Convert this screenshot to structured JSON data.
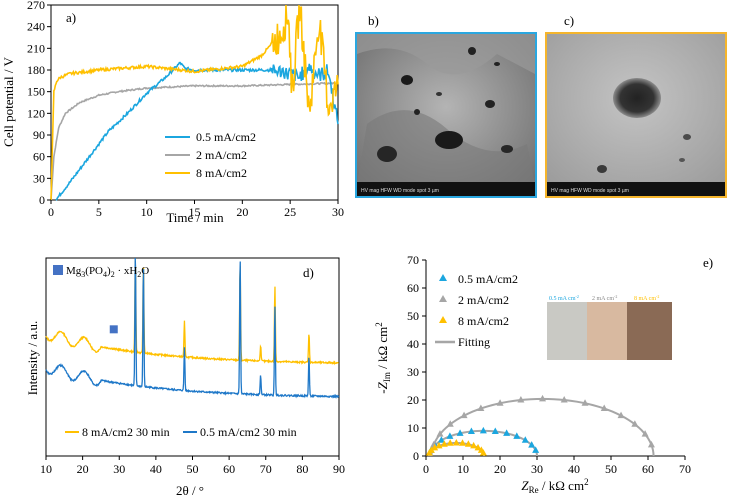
{
  "colors": {
    "blue": "#1ba6df",
    "gray": "#a6a6a6",
    "yellow": "#ffc000",
    "line_blue_xrd": "#1f78c8",
    "square": "#4472c4",
    "frame_b": "#2aa7e0",
    "frame_c": "#f5b52c",
    "fitting": "#a6a6a6"
  },
  "chart_data": [
    {
      "id": "a",
      "type": "line",
      "panel_label": "a)",
      "xlabel": "Time / min",
      "ylabel": "Cell potential / V",
      "xlim": [
        0,
        30
      ],
      "ylim": [
        0,
        270
      ],
      "xticks": [
        "0",
        "5",
        "10",
        "15",
        "20",
        "25",
        "30"
      ],
      "yticks": [
        "0",
        "30",
        "60",
        "90",
        "120",
        "150",
        "180",
        "210",
        "240",
        "270"
      ],
      "legend": [
        "0.5 mA/cm2",
        "2 mA/cm2",
        "8 mA/cm2"
      ],
      "series": [
        {
          "name": "0.5 mA/cm2",
          "color": "#1ba6df",
          "x": [
            0.5,
            2,
            4,
            6,
            8,
            10,
            12,
            13.5,
            14,
            15,
            20,
            23,
            25,
            26,
            27,
            28,
            29,
            30
          ],
          "y": [
            0,
            25,
            60,
            95,
            120,
            148,
            170,
            190,
            182,
            180,
            180,
            180,
            175,
            170,
            185,
            172,
            178,
            105
          ]
        },
        {
          "name": "2 mA/cm2",
          "color": "#a6a6a6",
          "x": [
            0,
            0.3,
            0.8,
            1.5,
            3,
            5,
            7,
            10,
            15,
            20,
            25,
            30
          ],
          "y": [
            0,
            60,
            100,
            120,
            135,
            145,
            150,
            155,
            158,
            158,
            160,
            162
          ]
        },
        {
          "name": "8 mA/cm2",
          "color": "#ffc000",
          "x": [
            0,
            0.3,
            0.6,
            1,
            2,
            5,
            10,
            15,
            20,
            22,
            24,
            24.8,
            25.2,
            26,
            27,
            28,
            29,
            30
          ],
          "y": [
            0,
            150,
            165,
            170,
            175,
            180,
            185,
            178,
            185,
            200,
            230,
            260,
            150,
            270,
            120,
            250,
            130,
            160
          ]
        }
      ]
    },
    {
      "id": "d",
      "type": "line",
      "panel_label": "d)",
      "xlabel": "2θ / °",
      "ylabel": "Intensity / a.u.",
      "xlim": [
        10,
        90
      ],
      "xticks": [
        "10",
        "20",
        "30",
        "40",
        "50",
        "60",
        "70",
        "80",
        "90"
      ],
      "legend": [
        "8 mA/cm2 30 min",
        "0.5 mA/cm2 30 min"
      ],
      "marker_legend": "Mg",
      "marker_legend_sub": "3",
      "marker_legend_mid": "(PO",
      "marker_legend_sub2": "4",
      "marker_legend_end": ")",
      "marker_legend_sub3": "2",
      "marker_legend_tail": " · xH",
      "marker_legend_sub4": "2",
      "marker_legend_final": "O",
      "marker_position": 28.5,
      "peaks": [
        34.4,
        36.6,
        47.8,
        63.0,
        68.6,
        72.5,
        81.8
      ],
      "series": [
        {
          "name": "8 mA/cm2 30 min",
          "color": "#ffc000",
          "baseline": [
            0.62,
            0.47
          ],
          "peak_heights": [
            0.48,
            0.45,
            0.18,
            0.5,
            0.08,
            0.38,
            0.15
          ]
        },
        {
          "name": "0.5 mA/cm2 30 min",
          "color": "#1f78c8",
          "baseline": [
            0.45,
            0.3
          ],
          "peak_heights": [
            0.7,
            0.62,
            0.22,
            0.7,
            0.1,
            0.45,
            0.2
          ]
        }
      ]
    },
    {
      "id": "e",
      "type": "scatter",
      "panel_label": "e)",
      "xlabel": "Z",
      "xlabel_sub": "Re",
      "xlabel_unit": " / kΩ cm",
      "xlabel_sup": "2",
      "ylabel": "-Z",
      "ylabel_sub": "Im",
      "ylabel_unit": " / kΩ cm",
      "ylabel_sup": "2",
      "xlim": [
        0,
        70
      ],
      "ylim": [
        0,
        70
      ],
      "xticks": [
        "0",
        "10",
        "20",
        "30",
        "40",
        "50",
        "60",
        "70"
      ],
      "yticks": [
        "0",
        "10",
        "20",
        "30",
        "40",
        "50",
        "60",
        "70"
      ],
      "legend": [
        "0.5 mA/cm2",
        "2 mA/cm2",
        "8 mA/cm2",
        "Fitting"
      ],
      "series": [
        {
          "name": "0.5 mA/cm2",
          "color": "#1ba6df",
          "center": 15.5,
          "radius": 14.5,
          "yscale": 0.62
        },
        {
          "name": "2 mA/cm2",
          "color": "#a6a6a6",
          "center": 31.5,
          "radius": 30,
          "yscale": 0.68
        },
        {
          "name": "8 mA/cm2",
          "color": "#ffc000",
          "center": 8.2,
          "radius": 7.5,
          "yscale": 0.62
        }
      ],
      "inset_labels": [
        "0.5 mA cm",
        "2 mA cm",
        "8 mA cm"
      ],
      "inset_sup": "-2"
    }
  ],
  "panels": {
    "b_label": "b)",
    "c_label": "c)",
    "sem_b_bar": "HV  mag  HFW  WD  mode spot            3 µm",
    "sem_c_bar": "HV  mag  HFW  WD  mode spot            3 µm"
  }
}
